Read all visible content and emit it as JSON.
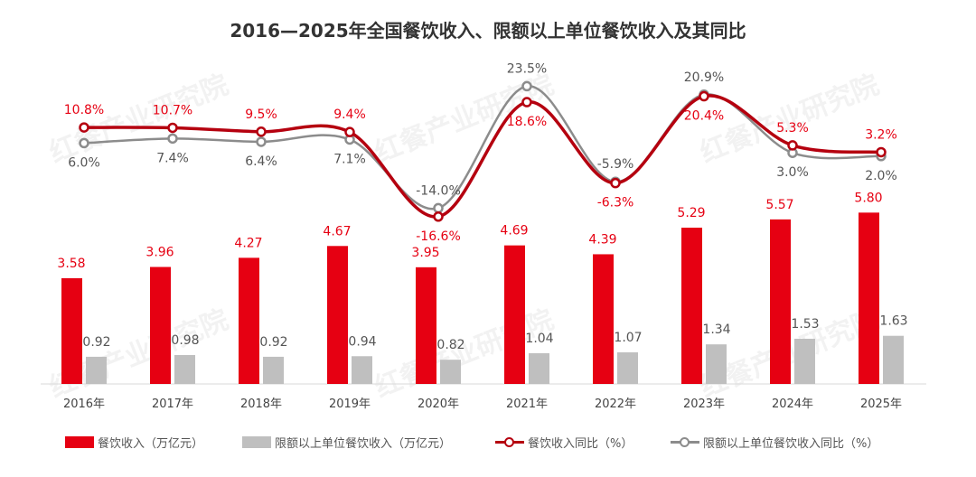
{
  "chart_data": {
    "type": "bar+line",
    "title": "2016—2025年全国餐饮收入、限额以上单位餐饮收入及其同比",
    "categories": [
      "2016年",
      "2017年",
      "2018年",
      "2019年",
      "2020年",
      "2021年",
      "2022年",
      "2023年",
      "2024年",
      "2025年"
    ],
    "series": [
      {
        "name": "餐饮收入（万亿元）",
        "type": "bar",
        "color": "#e60012",
        "values": [
          3.58,
          3.96,
          4.27,
          4.67,
          3.95,
          4.69,
          4.39,
          5.29,
          5.57,
          5.8
        ],
        "labels": [
          "3.58",
          "3.96",
          "4.27",
          "4.67",
          "3.95",
          "4.69",
          "4.39",
          "5.29",
          "5.57",
          "5.80"
        ]
      },
      {
        "name": "限额以上单位餐饮收入（万亿元）",
        "type": "bar",
        "color": "#bfbfbf",
        "values": [
          0.92,
          0.98,
          0.92,
          0.94,
          0.82,
          1.04,
          1.07,
          1.34,
          1.53,
          1.63
        ],
        "labels": [
          "0.92",
          "0.98",
          "0.92",
          "0.94",
          "0.82",
          "1.04",
          "1.07",
          "1.34",
          "1.53",
          "1.63"
        ]
      },
      {
        "name": "餐饮收入同比（%）",
        "type": "line",
        "color": "#b5000f",
        "values": [
          10.8,
          10.7,
          9.5,
          9.4,
          -16.6,
          18.6,
          -6.3,
          20.4,
          5.3,
          3.2
        ],
        "labels": [
          "10.8%",
          "10.7%",
          "9.5%",
          "9.4%",
          "-16.6%",
          "18.6%",
          "-6.3%",
          "20.4%",
          "5.3%",
          "3.2%"
        ]
      },
      {
        "name": "限额以上单位餐饮收入同比（%）",
        "type": "line",
        "color": "#8c8c8c",
        "values": [
          6.0,
          7.4,
          6.4,
          7.1,
          -14.0,
          23.5,
          -5.9,
          20.9,
          3.0,
          2.0
        ],
        "labels": [
          "6.0%",
          "7.4%",
          "6.4%",
          "7.1%",
          "-14.0%",
          "23.5%",
          "-5.9%",
          "20.9%",
          "3.0%",
          "2.0%"
        ]
      }
    ],
    "legend": "bottom",
    "grid": false
  },
  "watermark": "红餐产业研究院"
}
